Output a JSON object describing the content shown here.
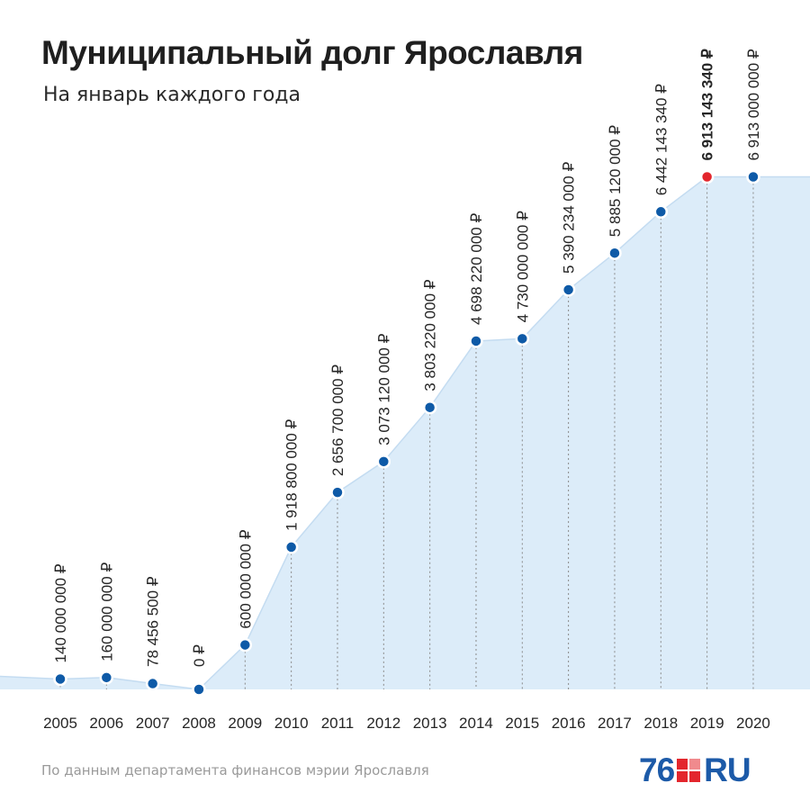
{
  "title": "Муниципальный долг Ярославля",
  "subtitle": "На январь каждого года",
  "source": "По данным департамента финансов мэрии Ярославля",
  "logo": {
    "number": "76",
    "suffix": "RU"
  },
  "colors": {
    "point": "#0e5aa7",
    "highlight": "#e3262d",
    "area": "#dcecf9",
    "line": "#c4dcf1"
  },
  "chart_data": {
    "type": "area",
    "title": "Муниципальный долг Ярославля",
    "subtitle": "На январь каждого года",
    "categories": [
      "2005",
      "2006",
      "2007",
      "2008",
      "2009",
      "2010",
      "2011",
      "2012",
      "2013",
      "2014",
      "2015",
      "2016",
      "2017",
      "2018",
      "2019",
      "2020"
    ],
    "values": [
      140000000,
      160000000,
      78456500,
      0,
      600000000,
      1918800000,
      2656700000,
      3073120000,
      3803220000,
      4698220000,
      4730000000,
      5390234000,
      5885120000,
      6442143340,
      6913143340,
      6913000000
    ],
    "labels": [
      "140 000 000 ₽",
      "160 000 000 ₽",
      "78 456 500 ₽",
      "0 ₽",
      "600 000 000 ₽",
      "1 918 800 000 ₽",
      "2 656 700 000 ₽",
      "3 073 120 000 ₽",
      "3 803 220 000 ₽",
      "4 698 220 000 ₽",
      "4 730 000 000 ₽",
      "5 390 234 000 ₽",
      "5 885 120 000 ₽",
      "6 442 143 340 ₽",
      "6 913 143 340 ₽",
      "6 913 000 000 ₽"
    ],
    "highlight_index": 14,
    "ylim": [
      0,
      7500000000
    ],
    "grid": false,
    "legend": "none",
    "xlabel": "",
    "ylabel": ""
  }
}
